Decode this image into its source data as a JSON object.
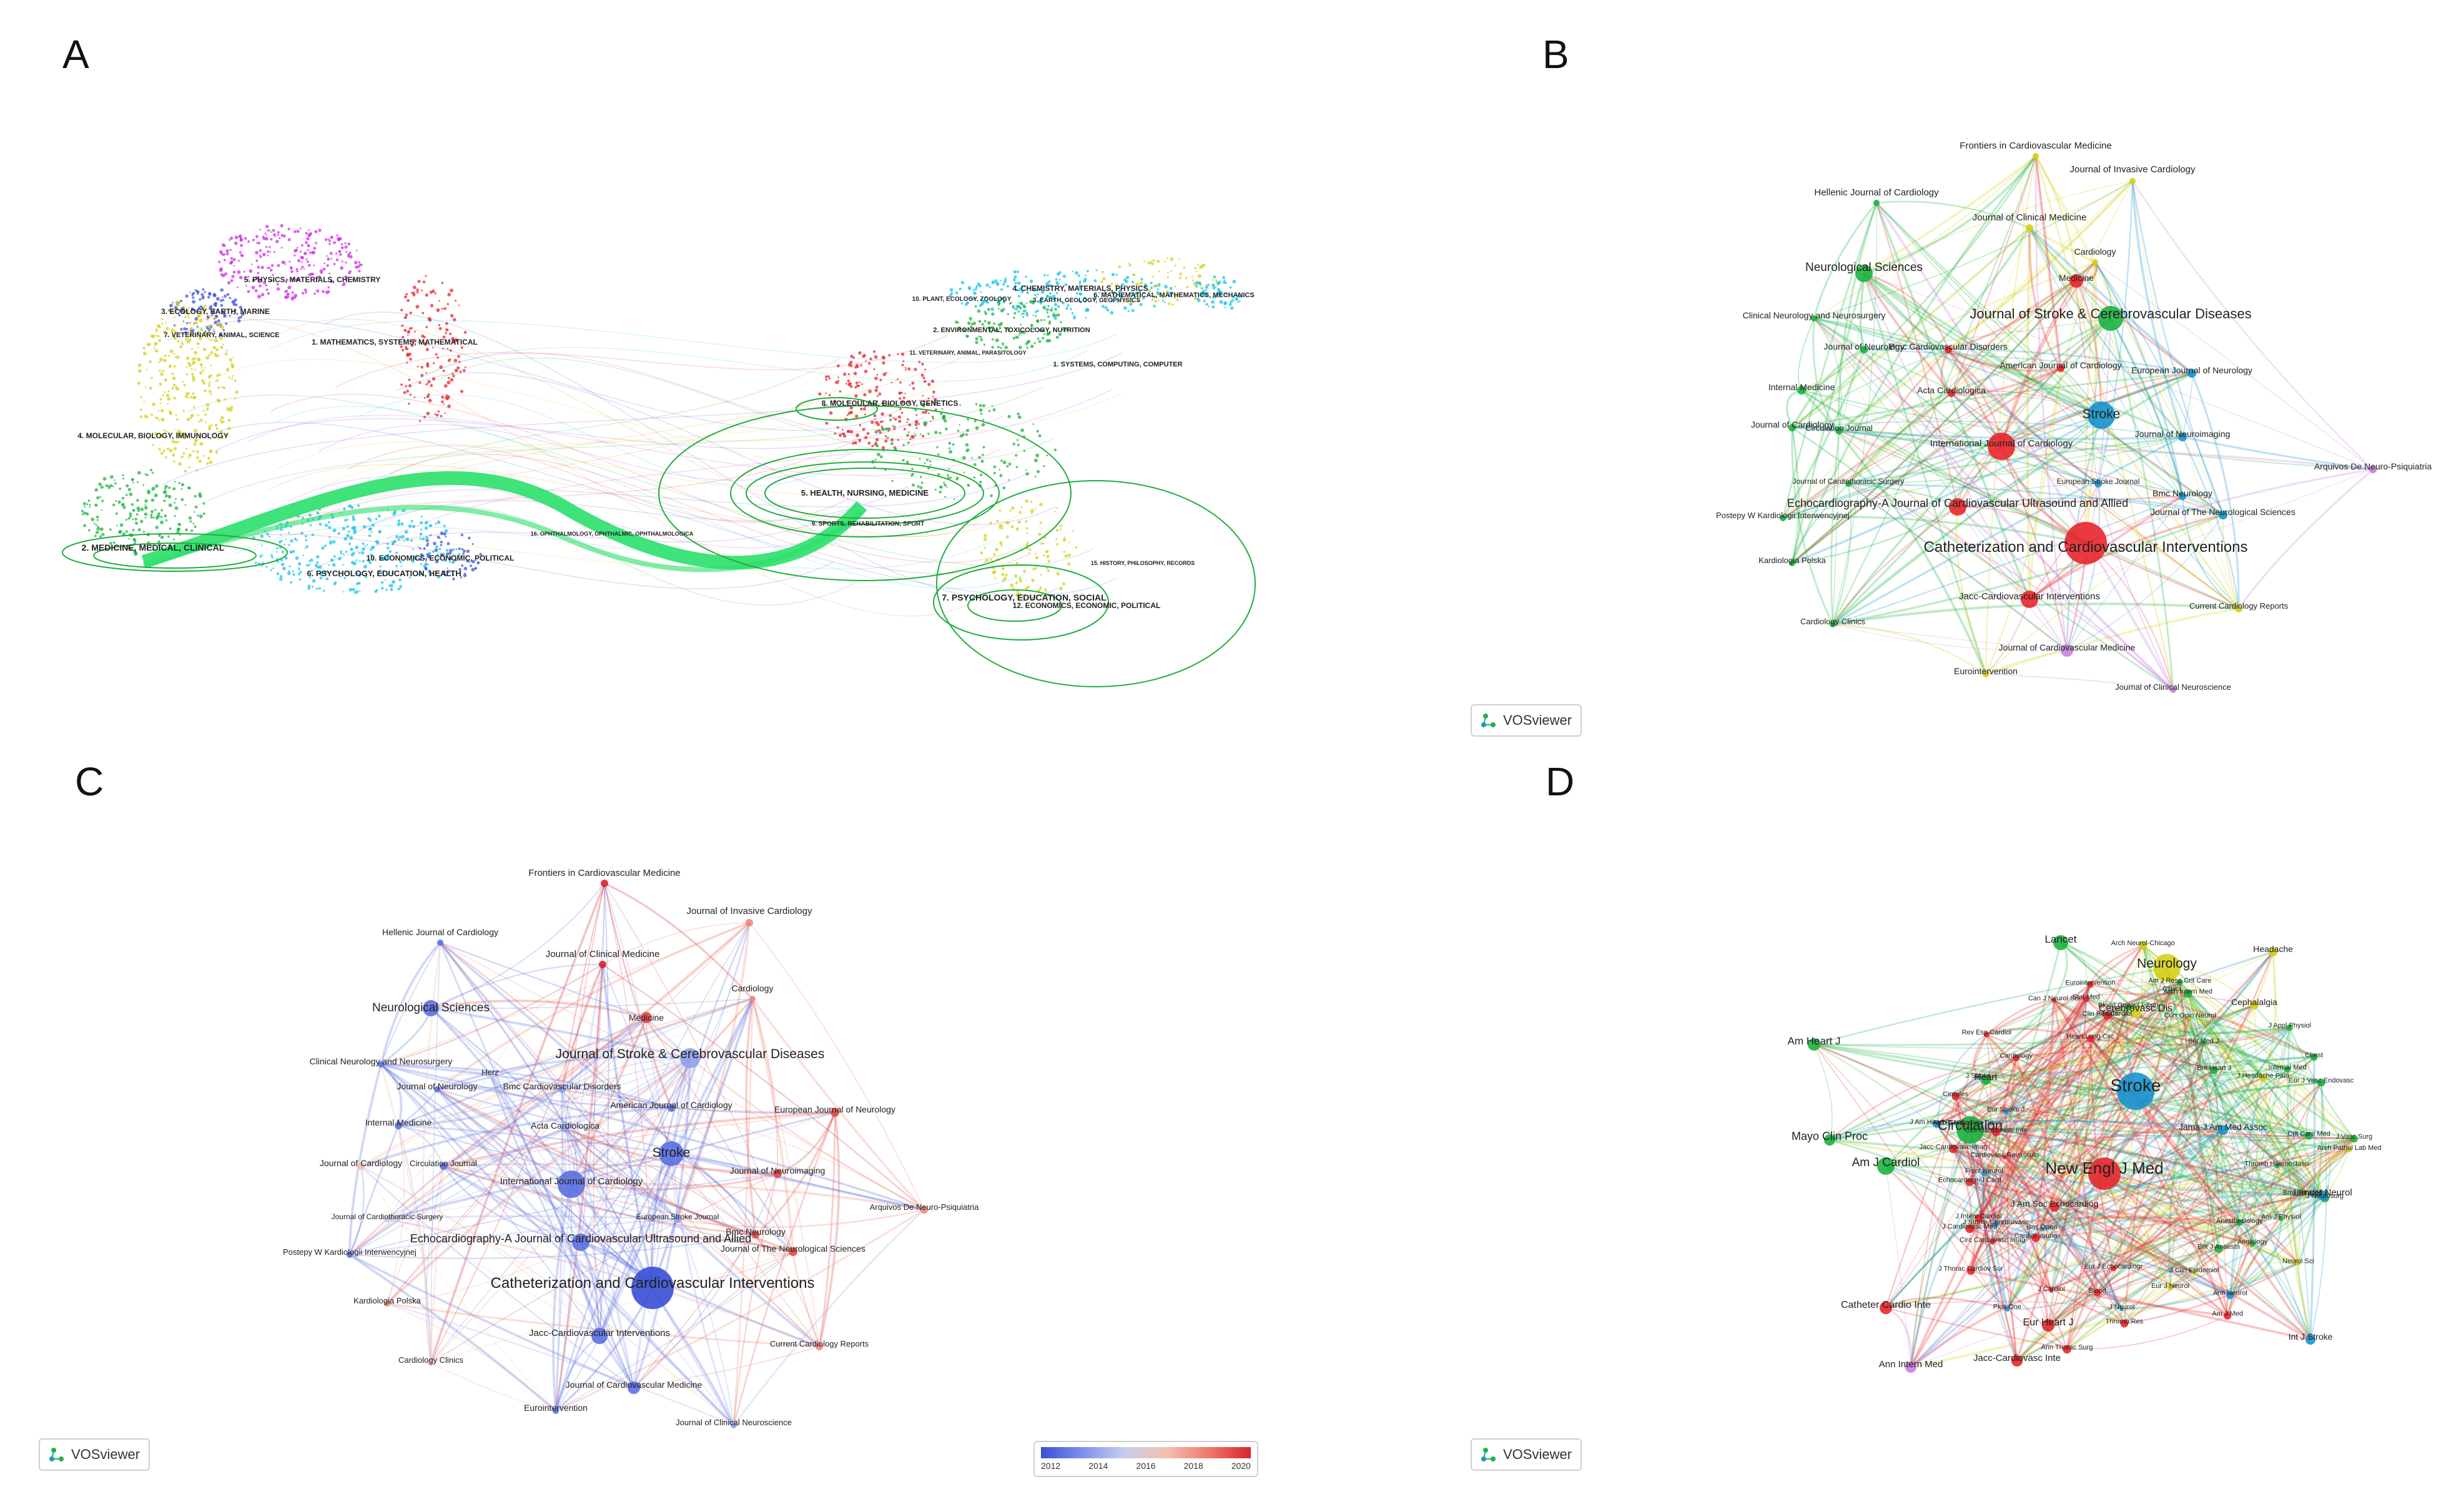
{
  "panels": [
    {
      "letter": "A"
    },
    {
      "letter": "B"
    },
    {
      "letter": "C"
    },
    {
      "letter": "D"
    }
  ],
  "badge_label": "VOSviewer",
  "legend": {
    "ticks": [
      "2012",
      "2014",
      "2016",
      "2018",
      "2020"
    ]
  },
  "colors": {
    "green": "#1db33f",
    "red": "#e8262c",
    "blue": "#1793d1",
    "yellow": "#d6cf1a",
    "purple": "#c87ee0",
    "cyan": "#18c6e8",
    "magenta": "#d12ce6",
    "orange": "#f08a1e",
    "blue_dark": "#3f55d9"
  },
  "panel_a": {
    "labels_left": [
      "5. PHYSICS, MATERIALS, CHEMISTRY",
      "3. ECOLOGY, EARTH, MARINE",
      "7. VETERINARY, ANIMAL, SCIENCE",
      "1. MATHEMATICS, SYSTEMS, MATHEMATICAL",
      "4. MOLECULAR, BIOLOGY, IMMUNOLOGY",
      "2. MEDICINE, MEDICAL, CLINICAL",
      "10. ECONOMICS, ECONOMIC, POLITICAL",
      "6. PSYCHOLOGY, EDUCATION, HEALTH",
      "16. OPHTHALMOLOGY, OPHTHALMIC, OPHTHALMOLOGICA"
    ],
    "labels_right": [
      "4. CHEMISTRY, MATERIALS, PHYSICS",
      "10. PLANT, ECOLOGY, ZOOLOGY",
      "3. EARTH, GEOLOGY, GEOPHYSICS",
      "6. MATHEMATICAL, MATHEMATICS, MECHANICS",
      "2. ENVIRONMENTAL, TOXICOLOGY, NUTRITION",
      "11. VETERINARY, ANIMAL, PARASITOLOGY",
      "1. SYSTEMS, COMPUTING, COMPUTER",
      "8. MOLECULAR, BIOLOGY, GENETICS",
      "5. HEALTH, NURSING, MEDICINE",
      "9. SPORTS, REHABILITATION, SPORT",
      "15. HISTORY, PHILOSOPHY, RECORDS",
      "7. PSYCHOLOGY, EDUCATION, SOCIAL",
      "12. ECONOMICS, ECONOMIC, POLITICAL"
    ]
  },
  "panel_b": {
    "nodes": [
      {
        "label": "Frontiers in Cardiovascular Medicine",
        "color": "yellow"
      },
      {
        "label": "Journal of Invasive Cardiology",
        "color": "yellow"
      },
      {
        "label": "Hellenic Journal of Cardiology",
        "color": "green"
      },
      {
        "label": "Journal of Clinical Medicine",
        "color": "yellow"
      },
      {
        "label": "Cardiology",
        "color": "yellow"
      },
      {
        "label": "Neurological Sciences",
        "color": "green"
      },
      {
        "label": "Medicine",
        "color": "red"
      },
      {
        "label": "Journal of Stroke & Cerebrovascular Diseases",
        "color": "green"
      },
      {
        "label": "Clinical Neurology and Neurosurgery",
        "color": "green"
      },
      {
        "label": "Journal of Neurology",
        "color": "green"
      },
      {
        "label": "Bmc Cardiovascular Disorders",
        "color": "red"
      },
      {
        "label": "American Journal of Cardiology",
        "color": "red"
      },
      {
        "label": "European Journal of Neurology",
        "color": "blue"
      },
      {
        "label": "Internal Medicine",
        "color": "green"
      },
      {
        "label": "Acta Cardiologica",
        "color": "red"
      },
      {
        "label": "Stroke",
        "color": "blue"
      },
      {
        "label": "Journal of Cardiology",
        "color": "green"
      },
      {
        "label": "Circulation Journal",
        "color": "green"
      },
      {
        "label": "Journal of Neuroimaging",
        "color": "blue"
      },
      {
        "label": "International Journal of Cardiology",
        "color": "red"
      },
      {
        "label": "Arquivos De Neuro-Psiquiatria",
        "color": "purple"
      },
      {
        "label": "Journal of Cardiothoracic Surgery",
        "color": "green"
      },
      {
        "label": "European Stroke Journal",
        "color": "blue"
      },
      {
        "label": "Bmc Neurology",
        "color": "blue"
      },
      {
        "label": "Postepy W Kardiologii Interwencyjnej",
        "color": "green"
      },
      {
        "label": "Echocardiography-A Journal of Cardiovascular Ultrasound and Allied",
        "color": "red"
      },
      {
        "label": "Journal of The Neurological Sciences",
        "color": "blue"
      },
      {
        "label": "Catheterization and Cardiovascular Interventions",
        "color": "red"
      },
      {
        "label": "Kardiologia Polska",
        "color": "green"
      },
      {
        "label": "Jacc-Cardiovascular Interventions",
        "color": "red"
      },
      {
        "label": "Current Cardiology Reports",
        "color": "yellow"
      },
      {
        "label": "Cardiology Clinics",
        "color": "green"
      },
      {
        "label": "Journal of Cardiovascular Medicine",
        "color": "purple"
      },
      {
        "label": "Eurointervention",
        "color": "yellow"
      },
      {
        "label": "Journal of Clinical Neuroscience",
        "color": "purple"
      }
    ]
  },
  "panel_c": {
    "nodes": [
      {
        "label": "Frontiers in Cardiovascular Medicine"
      },
      {
        "label": "Journal of Invasive Cardiology"
      },
      {
        "label": "Hellenic Journal of Cardiology"
      },
      {
        "label": "Journal of Clinical Medicine"
      },
      {
        "label": "Cardiology"
      },
      {
        "label": "Neurological Sciences"
      },
      {
        "label": "Medicine"
      },
      {
        "label": "Journal of Stroke & Cerebrovascular Diseases"
      },
      {
        "label": "Clinical Neurology and Neurosurgery"
      },
      {
        "label": "Herz"
      },
      {
        "label": "Journal of Neurology"
      },
      {
        "label": "Bmc Cardiovascular Disorders"
      },
      {
        "label": "American Journal of Cardiology"
      },
      {
        "label": "European Journal of Neurology"
      },
      {
        "label": "Internal Medicine"
      },
      {
        "label": "Acta Cardiologica"
      },
      {
        "label": "Stroke"
      },
      {
        "label": "Journal of Cardiology"
      },
      {
        "label": "Circulation Journal"
      },
      {
        "label": "Journal of Neuroimaging"
      },
      {
        "label": "International Journal of Cardiology"
      },
      {
        "label": "Arquivos De Neuro-Psiquiatria"
      },
      {
        "label": "Journal of Cardiothoracic Surgery"
      },
      {
        "label": "European Stroke Journal"
      },
      {
        "label": "Bmc Neurology"
      },
      {
        "label": "Echocardiography-A Journal of Cardiovascular Ultrasound and Allied"
      },
      {
        "label": "Postepy W Kardiologii Interwencyjnej"
      },
      {
        "label": "Journal of The Neurological Sciences"
      },
      {
        "label": "Catheterization and Cardiovascular Interventions"
      },
      {
        "label": "Kardiologia Polska"
      },
      {
        "label": "Jacc-Cardiovascular Interventions"
      },
      {
        "label": "Current Cardiology Reports"
      },
      {
        "label": "Cardiology Clinics"
      },
      {
        "label": "Journal of Cardiovascular Medicine"
      },
      {
        "label": "Eurointervention"
      },
      {
        "label": "Journal of Clinical Neuroscience"
      }
    ]
  },
  "panel_d": {
    "nodes": [
      {
        "label": "Blood Coagul Fibrin",
        "color": "green"
      },
      {
        "label": "Arch Neurol-Chicago",
        "color": "yellow"
      },
      {
        "label": "Clinici",
        "color": "green"
      },
      {
        "label": "Arch Intern Med",
        "color": "green"
      },
      {
        "label": "Am J Resp Crit Care",
        "color": "green"
      },
      {
        "label": "Curr Opin Neurol",
        "color": "yellow"
      },
      {
        "label": "Lancet",
        "color": "green"
      },
      {
        "label": "Brit Med J",
        "color": "green"
      },
      {
        "label": "Neurology",
        "color": "yellow"
      },
      {
        "label": "Headache",
        "color": "yellow"
      },
      {
        "label": "Brit Heart J",
        "color": "green"
      },
      {
        "label": "J Appl Physiol",
        "color": "green"
      },
      {
        "label": "Internal Med",
        "color": "green"
      },
      {
        "label": "J Headache Pain",
        "color": "yellow"
      },
      {
        "label": "Chest",
        "color": "green"
      },
      {
        "label": "Eur J Vasc Endovasc",
        "color": "green"
      },
      {
        "label": "Cerebrovasc Dis",
        "color": "yellow"
      },
      {
        "label": "Cephalalgia",
        "color": "yellow"
      },
      {
        "label": "Crit Care Med",
        "color": "green"
      },
      {
        "label": "J Vasc Surg",
        "color": "green"
      },
      {
        "label": "Arch Pathol Lab Med",
        "color": "yellow"
      },
      {
        "label": "Thromb Haemostasis",
        "color": "green"
      },
      {
        "label": "Bmj-Brit Med J",
        "color": "yellow"
      },
      {
        "label": "Am Heart J",
        "color": "green"
      },
      {
        "label": "J Neurosurg",
        "color": "green"
      },
      {
        "label": "Heart",
        "color": "green"
      },
      {
        "label": "Am J Physiol",
        "color": "green"
      },
      {
        "label": "Neurol Sci",
        "color": "yellow"
      },
      {
        "label": "Anesthesiology",
        "color": "green"
      },
      {
        "label": "Angiology",
        "color": "green"
      },
      {
        "label": "Stroke",
        "color": "blue"
      },
      {
        "label": "Brit J Anaesth",
        "color": "green"
      },
      {
        "label": "Ann Neurol",
        "color": "blue"
      },
      {
        "label": "Am J Med",
        "color": "red"
      },
      {
        "label": "Jama-J Am Med Assoc",
        "color": "blue"
      },
      {
        "label": "J Clin Epidemiol",
        "color": "yellow"
      },
      {
        "label": "Mayo Clin Proc",
        "color": "green"
      },
      {
        "label": "Circulation",
        "color": "green"
      },
      {
        "label": "Eur J Neurol",
        "color": "yellow"
      },
      {
        "label": "Am J Cardiol",
        "color": "green"
      },
      {
        "label": "New Engl J Med",
        "color": "red"
      },
      {
        "label": "Thromb Res",
        "color": "red"
      },
      {
        "label": "J Neurol",
        "color": "blue"
      },
      {
        "label": "Eur J Echocardiogr",
        "color": "red"
      },
      {
        "label": "Blood",
        "color": "red"
      },
      {
        "label": "Ann Thorac Surg",
        "color": "red"
      },
      {
        "label": "Lancet Neurol",
        "color": "blue"
      },
      {
        "label": "J Am Soc Echocardiog",
        "color": "red"
      },
      {
        "label": "J Cardiol",
        "color": "red"
      },
      {
        "label": "Plos One",
        "color": "blue"
      },
      {
        "label": "Bmj Open",
        "color": "blue"
      },
      {
        "label": "J Thorac Cardiov Sur",
        "color": "red"
      },
      {
        "label": "Cardiol Young",
        "color": "red"
      },
      {
        "label": "Circ Cardiovasc Imag",
        "color": "red"
      },
      {
        "label": "J Cardiovasc Med",
        "color": "red"
      },
      {
        "label": "J Stroke Cerebrovasc",
        "color": "blue"
      },
      {
        "label": "J Interv Cardiol",
        "color": "red"
      },
      {
        "label": "Echocardiogr-J Card",
        "color": "red"
      },
      {
        "label": "Front Neurol",
        "color": "blue"
      },
      {
        "label": "Cardiovasc Revasculo",
        "color": "red"
      },
      {
        "label": "Jacc-Cardiovasc Imag",
        "color": "red"
      },
      {
        "label": "J Am Heart Assoc",
        "color": "blue"
      },
      {
        "label": "Arch Cardiovasc Dis",
        "color": "red"
      },
      {
        "label": "Circ-Cardiovasc Inte",
        "color": "red"
      },
      {
        "label": "Cireules",
        "color": "red"
      },
      {
        "label": "Eur Stroke J",
        "color": "blue"
      },
      {
        "label": "J Stroke",
        "color": "blue"
      },
      {
        "label": "Catheter Cardio Inte",
        "color": "red"
      },
      {
        "label": "Eur Heart J",
        "color": "red"
      },
      {
        "label": "Cardiology",
        "color": "red"
      },
      {
        "label": "Rev Esp Cardiol",
        "color": "red"
      },
      {
        "label": "Int J Stroke",
        "color": "blue"
      },
      {
        "label": "Jacc-Cardiovasc Inte",
        "color": "red"
      },
      {
        "label": "Can J Neurol Sci",
        "color": "red"
      },
      {
        "label": "Ann Intern Med",
        "color": "purple"
      },
      {
        "label": "Stat Med",
        "color": "red"
      },
      {
        "label": "Heart Lung Circ",
        "color": "red"
      },
      {
        "label": "Clin Res Cardiol",
        "color": "red"
      },
      {
        "label": "Eurointervention",
        "color": "red"
      },
      {
        "label": "Trials",
        "color": "red"
      }
    ]
  }
}
